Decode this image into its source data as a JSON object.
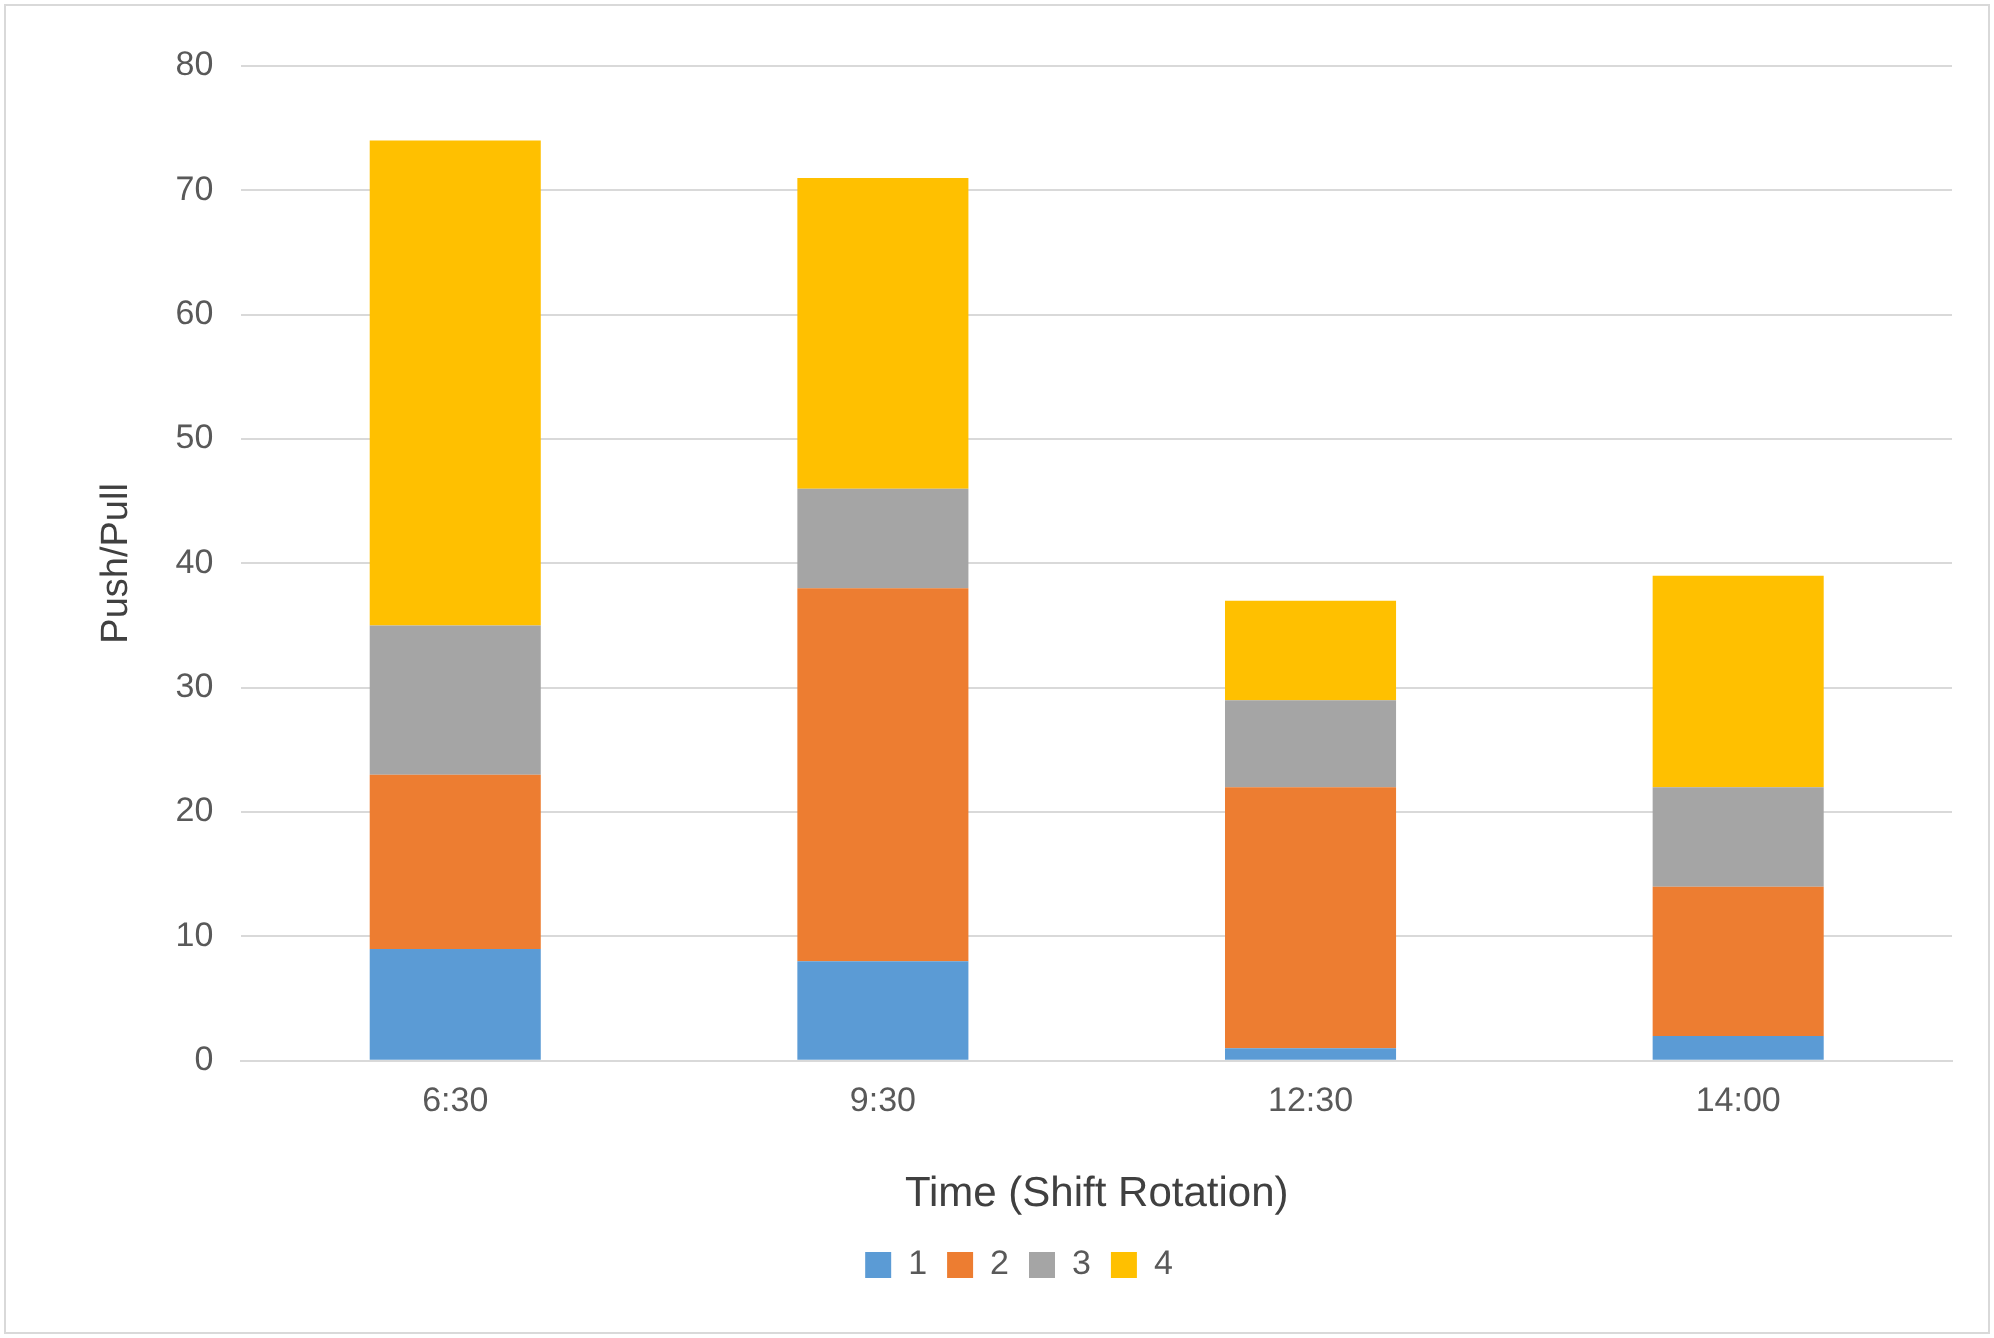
{
  "chart_data": {
    "type": "bar",
    "stacked": true,
    "xlabel": "Time (Shift Rotation)",
    "ylabel": "Push/Pull",
    "categories": [
      "6:30",
      "9:30",
      "12:30",
      "14:00"
    ],
    "series": [
      {
        "name": "1",
        "color": "#5b9bd5",
        "values": [
          9,
          8,
          1,
          2
        ]
      },
      {
        "name": "2",
        "color": "#ed7d31",
        "values": [
          14,
          30,
          21,
          12
        ]
      },
      {
        "name": "3",
        "color": "#a5a5a5",
        "values": [
          12,
          8,
          7,
          8
        ]
      },
      {
        "name": "4",
        "color": "#ffc000",
        "values": [
          39,
          25,
          8,
          17
        ]
      }
    ],
    "ylim": [
      0,
      80
    ],
    "yticks": [
      0,
      10,
      20,
      30,
      40,
      50,
      60,
      70,
      80
    ],
    "grid": "y",
    "legend": "bottom"
  }
}
